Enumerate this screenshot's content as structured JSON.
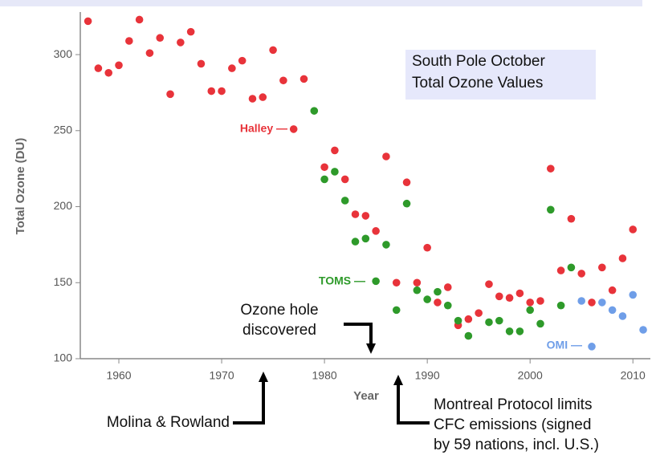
{
  "chart_data": {
    "type": "scatter",
    "title": [
      "South Pole October",
      "Total Ozone Values"
    ],
    "x_label": "Year",
    "y_label": "Total Ozone (DU)",
    "xlim": [
      1956.25,
      2011.7
    ],
    "ylim": [
      100,
      328
    ],
    "xticks": [
      1960,
      1970,
      1980,
      1990,
      2000,
      2010
    ],
    "yticks": [
      100,
      150,
      200,
      250,
      300
    ],
    "series": [
      {
        "name": "Halley",
        "label": "Halley —",
        "color": "#e8333a",
        "x": [
          1957,
          1958,
          1959,
          1960,
          1961,
          1962,
          1963,
          1964,
          1965,
          1966,
          1967,
          1968,
          1969,
          1970,
          1971,
          1972,
          1973,
          1974,
          1975,
          1976,
          1977,
          1978,
          1980,
          1981,
          1982,
          1983,
          1984,
          1985,
          1986,
          1987,
          1988,
          1989,
          1990,
          1991,
          1992,
          1993,
          1994,
          1995,
          1996,
          1997,
          1998,
          1999,
          2000,
          2001,
          2002,
          2003,
          2004,
          2005,
          2006,
          2007,
          2008,
          2009,
          2010
        ],
        "values": [
          322,
          291,
          288,
          293,
          309,
          323,
          301,
          311,
          274,
          308,
          315,
          294,
          276,
          276,
          291,
          296,
          271,
          272,
          303,
          283,
          251,
          284,
          226,
          237,
          218,
          195,
          194,
          184,
          233,
          150,
          216,
          150,
          173,
          137,
          147,
          122,
          126,
          130,
          149,
          141,
          140,
          143,
          137,
          138,
          225,
          158,
          192,
          156,
          137,
          160,
          145,
          166,
          185
        ]
      },
      {
        "name": "TOMS",
        "label": "TOMS —",
        "color": "#2e9a2a",
        "x": [
          1979,
          1980,
          1981,
          1982,
          1983,
          1984,
          1985,
          1986,
          1987,
          1988,
          1989,
          1990,
          1991,
          1992,
          1993,
          1994,
          1996,
          1997,
          1998,
          1999,
          2000,
          2001,
          2002,
          2003,
          2004
        ],
        "values": [
          263,
          218,
          223,
          204,
          177,
          179,
          151,
          175,
          132,
          202,
          145,
          139,
          144,
          135,
          125,
          115,
          124,
          125,
          118,
          118,
          132,
          123,
          198,
          135,
          160
        ]
      },
      {
        "name": "OMI",
        "label": "OMI —",
        "color": "#6f9ee8",
        "x": [
          2005,
          2006,
          2007,
          2008,
          2009,
          2010,
          2011
        ],
        "values": [
          138,
          108,
          137,
          132,
          128,
          142,
          119
        ]
      }
    ],
    "annotations": {
      "ozone_hole": [
        "Ozone hole",
        "discovered"
      ],
      "molina": [
        "Molina & Rowland"
      ],
      "montreal": [
        "Montreal Protocol limits",
        "CFC emissions (signed",
        "by 59 nations, incl. U.S.)"
      ]
    }
  }
}
